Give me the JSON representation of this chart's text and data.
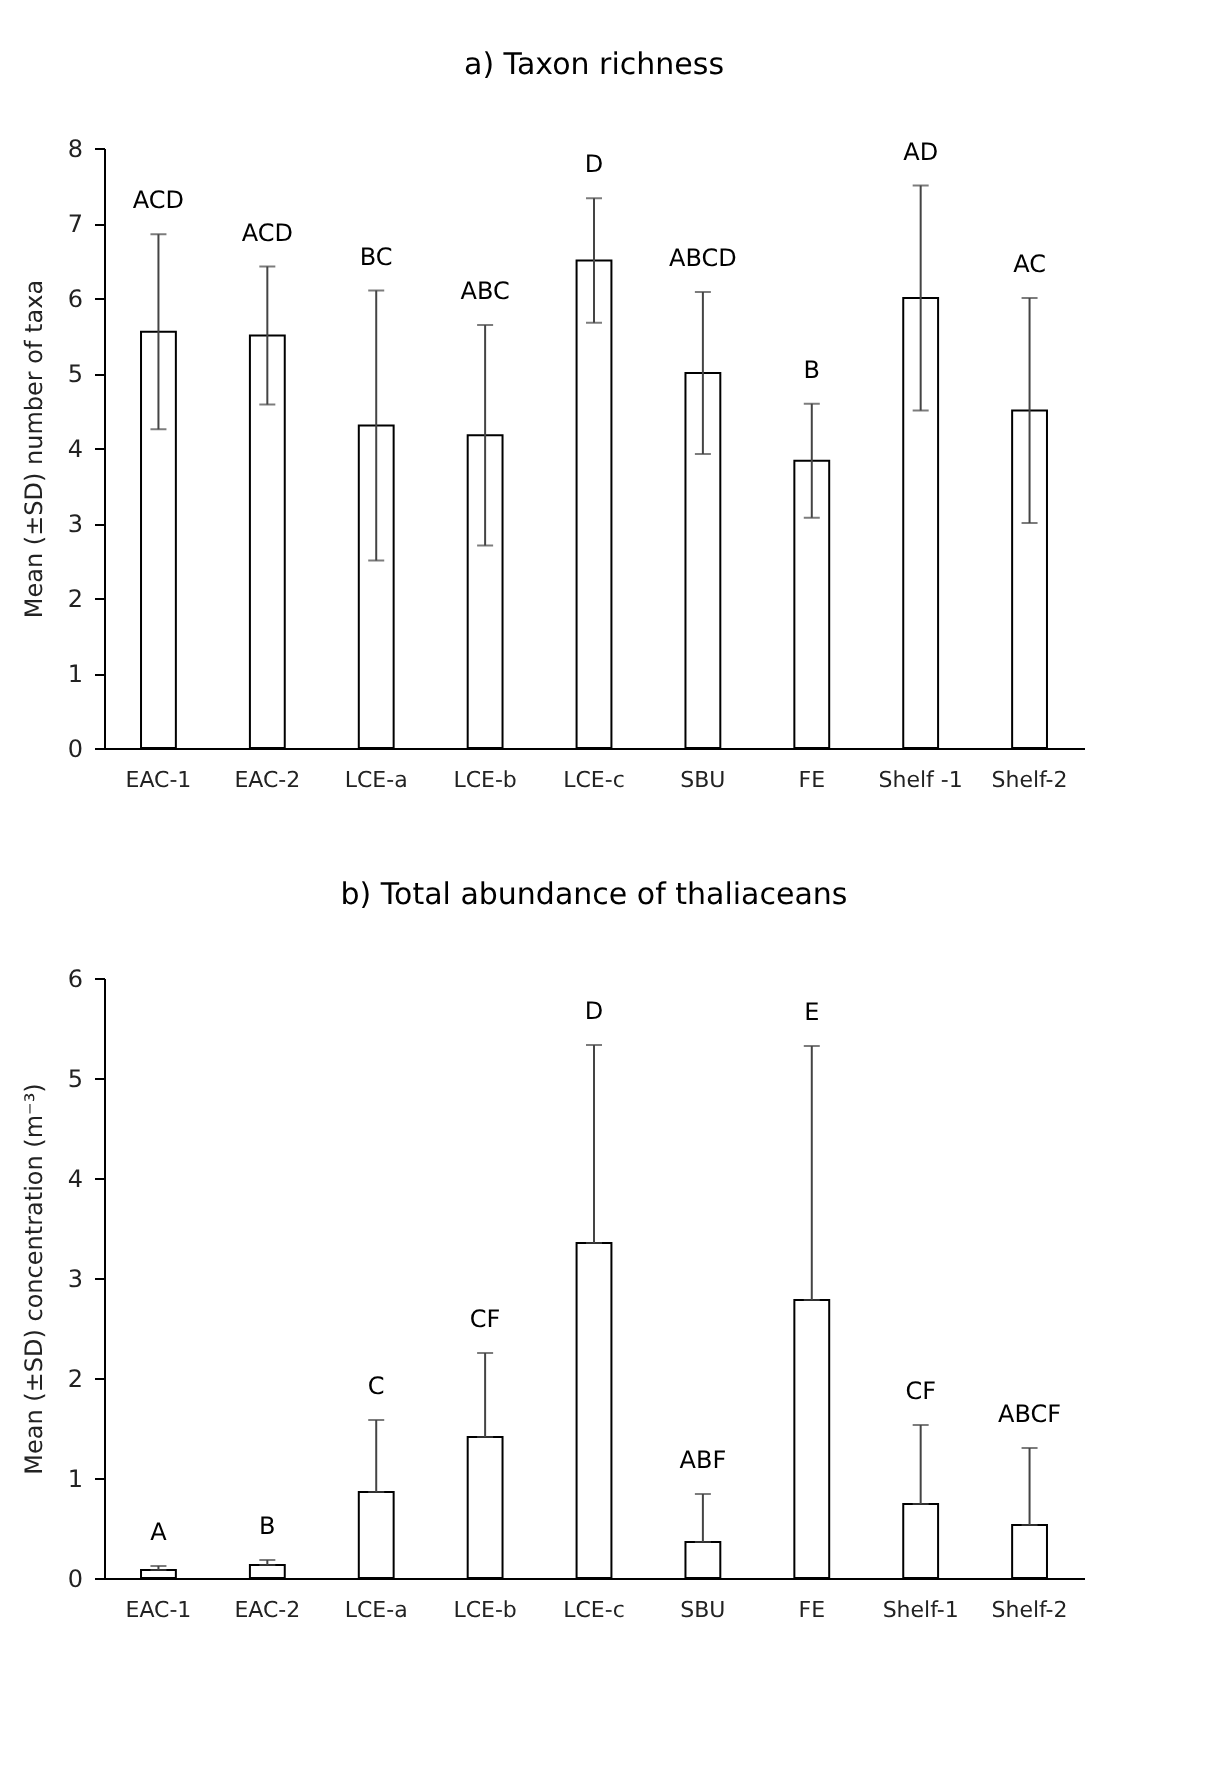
{
  "chart_data": [
    {
      "type": "bar",
      "title": "a) Taxon richness",
      "ylabel": "Mean (±SD) number of taxa",
      "categories": [
        "EAC-1",
        "EAC-2",
        "LCE-a",
        "LCE-b",
        "LCE-c",
        "SBU",
        "FE",
        "Shelf -1",
        "Shelf-2"
      ],
      "values": [
        5.55,
        5.5,
        4.3,
        4.17,
        6.5,
        5.0,
        3.83,
        6.0,
        4.5
      ],
      "errors": [
        1.3,
        0.92,
        1.8,
        1.47,
        0.83,
        1.08,
        0.76,
        1.5,
        1.5
      ],
      "color": "#ffffff",
      "ylim": [
        0,
        8
      ],
      "yticks": [
        0,
        1,
        2,
        3,
        4,
        5,
        6,
        7,
        8
      ],
      "grid": false,
      "annotations": [
        "ACD",
        "ACD",
        "BC",
        "ABC",
        "D",
        "ABCD",
        "B",
        "AD",
        "AC"
      ]
    },
    {
      "type": "bar",
      "title": "b) Total abundance of thaliaceans",
      "ylabel": "Mean (±SD) concentration (m⁻³)",
      "categories": [
        "EAC-1",
        "EAC-2",
        "LCE-a",
        "LCE-b",
        "LCE-c",
        "SBU",
        "FE",
        "Shelf-1",
        "Shelf-2"
      ],
      "values": [
        0.08,
        0.13,
        0.86,
        1.41,
        3.35,
        0.36,
        2.78,
        0.74,
        0.53
      ],
      "errors": [
        [
          0.08,
          0.12
        ],
        [
          0.13,
          0.18
        ],
        [
          0.86,
          1.58
        ],
        [
          1.41,
          2.25
        ],
        [
          3.35,
          5.33
        ],
        [
          0.36,
          0.84
        ],
        [
          2.78,
          5.32
        ],
        [
          0.74,
          1.53
        ],
        [
          0.53,
          1.3
        ]
      ],
      "color": "#ffffff",
      "ylim": [
        0,
        6
      ],
      "yticks": [
        0,
        1,
        2,
        3,
        4,
        5,
        6
      ],
      "grid": false,
      "annotations": [
        "A",
        "B",
        "C",
        "CF",
        "D",
        "ABF",
        "E",
        "CF",
        "ABCF"
      ]
    }
  ]
}
